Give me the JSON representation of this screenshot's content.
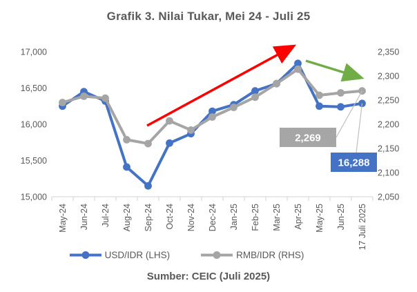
{
  "title": "Grafik 3. Nilai Tukar, Mei 24 - Juli 25",
  "source": "Sumber: CEIC (Juli 2025)",
  "colors": {
    "blue": "#4472C4",
    "gray": "#A5A5A5",
    "red": "#FF0000",
    "green": "#70AD47",
    "text": "#595959",
    "axis_line": "#D9D9D9",
    "leader_line": "#BFBFBF",
    "callout_gray": "#A6A6A6"
  },
  "legend": {
    "items": [
      {
        "label": "USD/IDR (LHS)",
        "color": "#4472C4"
      },
      {
        "label": "RMB/IDR (RHS)",
        "color": "#A5A5A5"
      }
    ]
  },
  "chart_data": {
    "type": "line",
    "title": "Grafik 3. Nilai Tukar, Mei 24 - Juli 25",
    "categories": [
      "May-24",
      "Jun-24",
      "Jul-24",
      "Aug-24",
      "Sep-24",
      "Oct-24",
      "Nov-24",
      "Dec-24",
      "Jan-25",
      "Feb-25",
      "Mar-25",
      "Apr-25",
      "May-25",
      "Jun-25",
      "17 Juli 2025"
    ],
    "series": [
      {
        "name": "USD/IDR (LHS)",
        "axis": "left",
        "color": "#4472C4",
        "values": [
          16250,
          16450,
          16320,
          15410,
          15150,
          15740,
          15870,
          16180,
          16270,
          16460,
          16560,
          16840,
          16250,
          16240,
          16288
        ]
      },
      {
        "name": "RMB/IDR (RHS)",
        "axis": "right",
        "color": "#A5A5A5",
        "values": [
          2245,
          2258,
          2254,
          2168,
          2160,
          2207,
          2188,
          2215,
          2235,
          2256,
          2284,
          2314,
          2260,
          2265,
          2269
        ]
      }
    ],
    "left_axis": {
      "min": 15000,
      "max": 17000,
      "tick_step": 500,
      "tick_values": [
        17000,
        16500,
        16000,
        15500,
        15000
      ],
      "tick_labels": [
        "17,000",
        "16,500",
        "16,000",
        "15,500",
        "15,000"
      ]
    },
    "right_axis": {
      "min": 2050,
      "max": 2350,
      "tick_step": 50,
      "tick_values": [
        2350,
        2300,
        2250,
        2200,
        2150,
        2100,
        2050
      ],
      "tick_labels": [
        "2,350",
        "2,300",
        "2,250",
        "2,200",
        "2,150",
        "2,100",
        "2,050"
      ]
    },
    "grid": false,
    "legend_position": "bottom",
    "annotations": {
      "callouts": [
        {
          "text": "2,269",
          "series_index": 1,
          "point_index": 14,
          "fill": "#A6A6A6",
          "text_color": "#FFFFFF"
        },
        {
          "text": "16,288",
          "series_index": 0,
          "point_index": 14,
          "fill": "#4472C4",
          "text_color": "#FFFFFF"
        }
      ],
      "arrows": [
        {
          "name": "uptrend-arrow",
          "color": "#FF0000",
          "direction": "up-right"
        },
        {
          "name": "downtrend-arrow",
          "color": "#70AD47",
          "direction": "down-right"
        }
      ]
    }
  }
}
